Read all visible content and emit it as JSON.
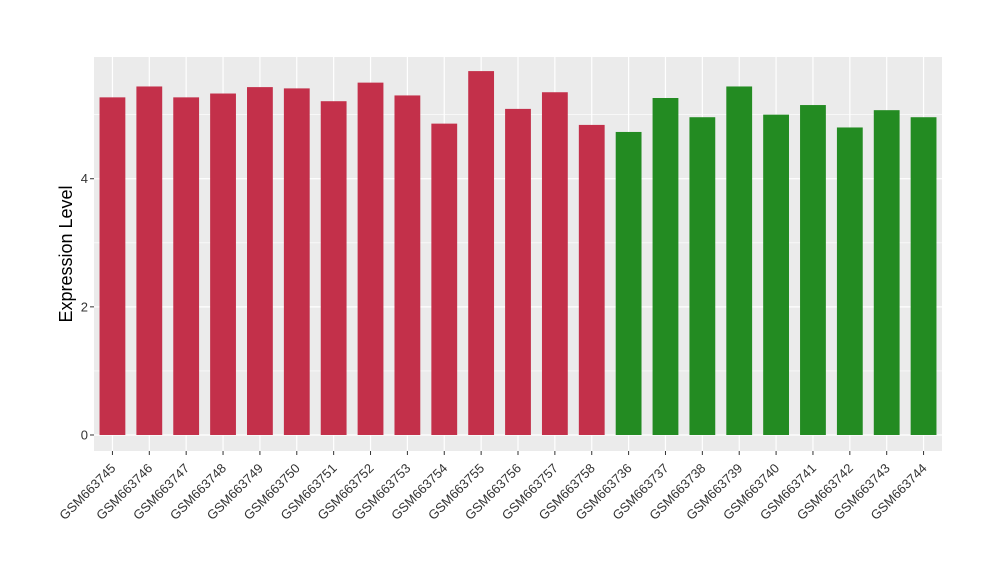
{
  "chart_data": {
    "type": "bar",
    "title": "",
    "xlabel": "",
    "ylabel": "Expression Level",
    "ylim": [
      -0.25,
      5.9
    ],
    "yticks": [
      0,
      2,
      4
    ],
    "grid": true,
    "legend": "none",
    "categories": [
      "GSM663745",
      "GSM663746",
      "GSM663747",
      "GSM663748",
      "GSM663749",
      "GSM663750",
      "GSM663751",
      "GSM663752",
      "GSM663753",
      "GSM663754",
      "GSM663755",
      "GSM663756",
      "GSM663757",
      "GSM663758",
      "GSM663736",
      "GSM663737",
      "GSM663738",
      "GSM663739",
      "GSM663740",
      "GSM663741",
      "GSM663742",
      "GSM663743",
      "GSM663744"
    ],
    "values": [
      5.27,
      5.44,
      5.27,
      5.33,
      5.43,
      5.41,
      5.21,
      5.5,
      5.3,
      4.86,
      5.68,
      5.09,
      5.35,
      4.84,
      4.73,
      5.26,
      4.96,
      5.44,
      5.0,
      5.15,
      4.8,
      5.07,
      4.96
    ],
    "groups": [
      "A",
      "A",
      "A",
      "A",
      "A",
      "A",
      "A",
      "A",
      "A",
      "A",
      "A",
      "A",
      "A",
      "A",
      "B",
      "B",
      "B",
      "B",
      "B",
      "B",
      "B",
      "B",
      "B"
    ],
    "group_colors": {
      "A": "#C3304A",
      "B": "#238B22"
    },
    "panel_background": "#EBEBEB",
    "grid_color": "#FFFFFF"
  }
}
